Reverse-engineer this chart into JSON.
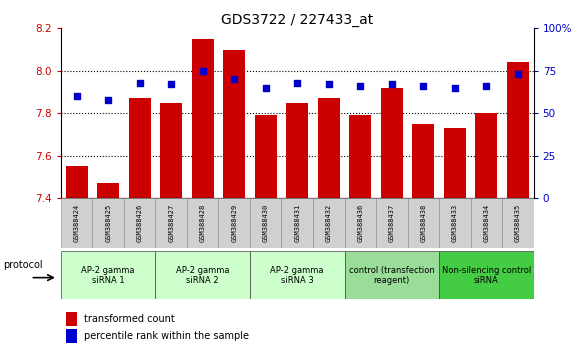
{
  "title": "GDS3722 / 227433_at",
  "categories": [
    "GSM388424",
    "GSM388425",
    "GSM388426",
    "GSM388427",
    "GSM388428",
    "GSM388429",
    "GSM388430",
    "GSM388431",
    "GSM388432",
    "GSM388436",
    "GSM388437",
    "GSM388438",
    "GSM388433",
    "GSM388434",
    "GSM388435"
  ],
  "bar_values": [
    7.55,
    7.47,
    7.87,
    7.85,
    8.15,
    8.1,
    7.79,
    7.85,
    7.87,
    7.79,
    7.92,
    7.75,
    7.73,
    7.8,
    8.04
  ],
  "scatter_values": [
    60,
    58,
    68,
    67,
    75,
    70,
    65,
    68,
    67,
    66,
    67,
    66,
    65,
    66,
    73
  ],
  "bar_color": "#cc0000",
  "scatter_color": "#0000cc",
  "ylim_left": [
    7.4,
    8.2
  ],
  "ylim_right": [
    0,
    100
  ],
  "yticks_left": [
    7.4,
    7.6,
    7.8,
    8.0,
    8.2
  ],
  "yticks_right": [
    0,
    25,
    50,
    75,
    100
  ],
  "ytick_labels_right": [
    "0",
    "25",
    "50",
    "75",
    "100%"
  ],
  "hgrid_lines": [
    7.6,
    7.8,
    8.0
  ],
  "groups": [
    {
      "label": "AP-2 gamma\nsiRNA 1",
      "indices": [
        0,
        1,
        2
      ],
      "color": "#ccffcc"
    },
    {
      "label": "AP-2 gamma\nsiRNA 2",
      "indices": [
        3,
        4,
        5
      ],
      "color": "#ccffcc"
    },
    {
      "label": "AP-2 gamma\nsiRNA 3",
      "indices": [
        6,
        7,
        8
      ],
      "color": "#ccffcc"
    },
    {
      "label": "control (transfection\nreagent)",
      "indices": [
        9,
        10,
        11
      ],
      "color": "#99dd99"
    },
    {
      "label": "Non-silencing control\nsiRNA",
      "indices": [
        12,
        13,
        14
      ],
      "color": "#44cc44"
    }
  ],
  "protocol_label": "protocol",
  "legend_bar_label": "transformed count",
  "legend_scatter_label": "percentile rank within the sample",
  "bar_color_legend": "#cc0000",
  "scatter_color_legend": "#0000cc",
  "tick_label_color_left": "#cc0000",
  "tick_label_color_right": "#0000cc",
  "xtick_bg_color": "#d0d0d0",
  "title_fontsize": 10
}
